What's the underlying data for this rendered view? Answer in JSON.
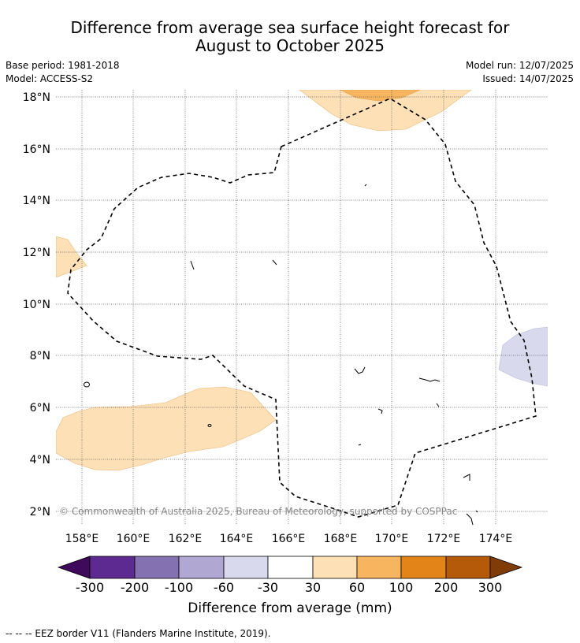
{
  "title_line1": "Difference from average sea surface height forecast for",
  "title_line2": "August to October 2025",
  "meta": {
    "base_period": "Base period: 1981-2018",
    "model": "Model: ACCESS-S2",
    "model_run": "Model run: 12/07/2025",
    "issued": "Issued: 14/07/2025"
  },
  "map": {
    "lat_labels": [
      "18°N",
      "16°N",
      "14°N",
      "12°N",
      "10°N",
      "8°N",
      "6°N",
      "4°N",
      "2°N"
    ],
    "lon_labels": [
      "158°E",
      "160°E",
      "162°E",
      "164°E",
      "166°E",
      "168°E",
      "170°E",
      "172°E",
      "174°E"
    ],
    "copyright": "© Commonwealth of Australia 2025, Bureau of Meteorology, supported by COSPPac",
    "fill_colors": {
      "light_orange": "#fde0b6",
      "orange": "#f8b560",
      "light_purple": "#d8d9ec"
    }
  },
  "colorbar": {
    "label": "Difference from average (mm)",
    "ticks": [
      "-300",
      "-200",
      "-100",
      "-60",
      "-30",
      "30",
      "60",
      "100",
      "200",
      "300"
    ],
    "colors": [
      "#3f0a5c",
      "#5c2a90",
      "#8371b1",
      "#b0a7d2",
      "#d8d9ec",
      "#ffffff",
      "#fde0b6",
      "#f8b560",
      "#e28417",
      "#b55a08",
      "#7f3b08"
    ]
  },
  "footnote": "--  --  -- EEZ border V11 (Flanders Marine Institute, 2019)."
}
